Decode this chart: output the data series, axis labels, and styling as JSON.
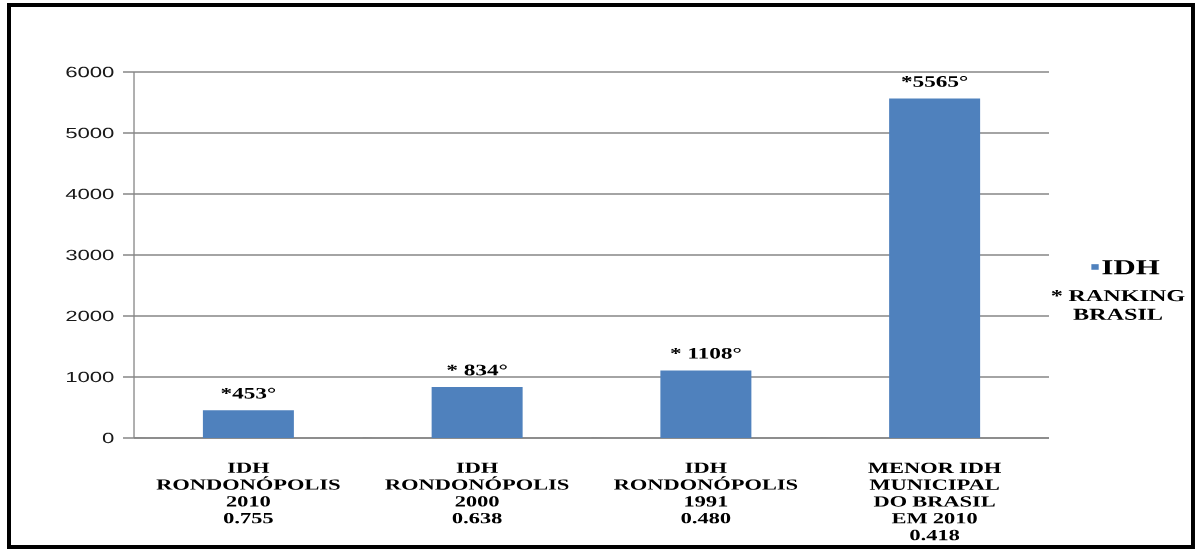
{
  "chart_data": {
    "type": "bar",
    "categories": [
      "IDH\nRONDONÓPOLIS\n2010\n0.755",
      "IDH\nRONDONÓPOLIS\n2000\n0.638",
      "IDH\nRONDONÓPOLIS\n1991\n0.480",
      "MENOR IDH\nMUNICIPAL\nDO BRASIL\nEM 2010\n0.418"
    ],
    "series": [
      {
        "name": "IDH",
        "color": "#4f81bd",
        "values": [
          453,
          834,
          1108,
          5565
        ],
        "value_labels": [
          "*453°",
          "* 834°",
          "* 1108°",
          "*5565°"
        ]
      }
    ],
    "ylim": [
      0,
      6000
    ],
    "yticks": [
      0,
      1000,
      2000,
      3000,
      4000,
      5000,
      6000
    ],
    "grid": "y",
    "legend": "right",
    "annotations": [
      "* RANKING BRASIL"
    ]
  }
}
